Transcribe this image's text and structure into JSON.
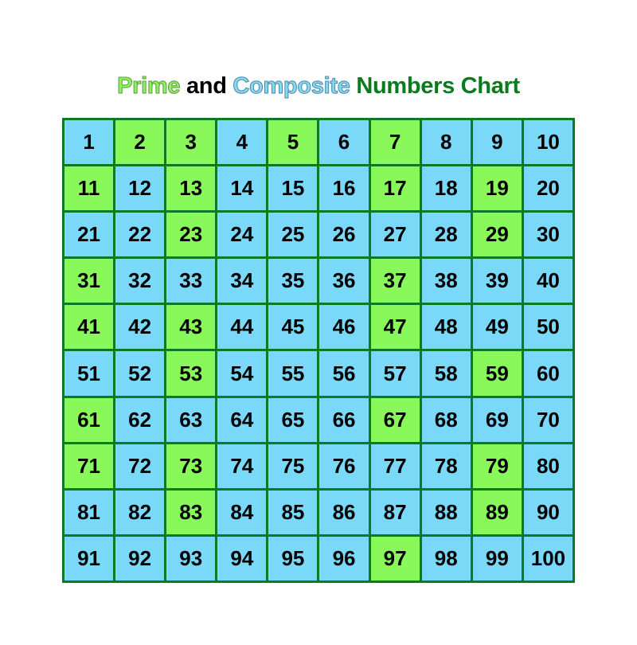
{
  "title": {
    "prime": "Prime",
    "and": "and",
    "composite": "Composite",
    "rest": "Numbers Chart"
  },
  "colors": {
    "prime": "#88f85a",
    "composite": "#7ad8f8",
    "border": "#0b7a22",
    "title_dark_green": "#0a7a1c"
  },
  "chart_data": {
    "type": "table",
    "rows": 10,
    "columns": 10,
    "numbers_from": 1,
    "numbers_to": 100,
    "highlighted_as_prime": [
      2,
      3,
      5,
      7,
      11,
      13,
      17,
      19,
      23,
      29,
      31,
      37,
      41,
      43,
      47,
      53,
      59,
      61,
      67,
      71,
      73,
      79,
      83,
      89,
      97
    ],
    "other_color": "composite"
  }
}
